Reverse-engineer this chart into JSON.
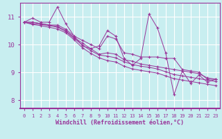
{
  "xlabel": "Windchill (Refroidissement éolien,°C)",
  "background_color": "#c8eef0",
  "line_color": "#993399",
  "grid_color": "#ffffff",
  "xlim": [
    -0.5,
    23.5
  ],
  "ylim": [
    7.7,
    11.5
  ],
  "yticks": [
    8,
    9,
    10,
    11
  ],
  "xticks": [
    0,
    1,
    2,
    3,
    4,
    5,
    6,
    7,
    8,
    9,
    10,
    11,
    12,
    13,
    14,
    15,
    16,
    17,
    18,
    19,
    20,
    21,
    22,
    23
  ],
  "series": [
    [
      10.8,
      10.95,
      10.8,
      10.8,
      11.35,
      10.75,
      10.3,
      9.95,
      9.85,
      9.95,
      10.5,
      10.3,
      9.5,
      9.25,
      9.5,
      11.1,
      10.6,
      9.7,
      8.2,
      9.05,
      8.6,
      8.9,
      8.65,
      8.75
    ],
    [
      10.8,
      10.8,
      10.75,
      10.7,
      10.7,
      10.55,
      10.3,
      10.15,
      10.0,
      9.85,
      10.3,
      10.2,
      9.7,
      9.65,
      9.55,
      9.55,
      9.55,
      9.5,
      9.5,
      9.1,
      9.05,
      9.0,
      8.75,
      8.75
    ],
    [
      10.8,
      10.8,
      10.75,
      10.7,
      10.65,
      10.5,
      10.25,
      10.05,
      9.85,
      9.65,
      9.7,
      9.65,
      9.45,
      9.4,
      9.3,
      9.25,
      9.2,
      9.15,
      9.1,
      9.05,
      9.0,
      8.95,
      8.8,
      8.75
    ],
    [
      10.8,
      10.75,
      10.72,
      10.68,
      10.62,
      10.47,
      10.22,
      9.98,
      9.78,
      9.62,
      9.58,
      9.52,
      9.38,
      9.28,
      9.22,
      9.18,
      9.12,
      9.02,
      8.92,
      8.87,
      8.82,
      8.77,
      8.72,
      8.67
    ],
    [
      10.8,
      10.72,
      10.68,
      10.62,
      10.56,
      10.42,
      10.17,
      9.88,
      9.68,
      9.52,
      9.42,
      9.37,
      9.22,
      9.12,
      9.07,
      9.02,
      8.97,
      8.87,
      8.77,
      8.72,
      8.67,
      8.62,
      8.57,
      8.52
    ]
  ]
}
